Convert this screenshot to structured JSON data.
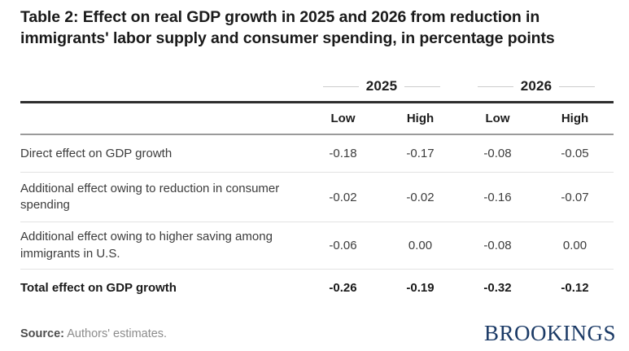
{
  "title": "Table 2: Effect on real GDP growth in 2025 and 2026 from reduction in immigrants' labor supply and consumer spending, in percentage points",
  "table": {
    "year_groups": [
      "2025",
      "2026"
    ],
    "sub_headers": [
      "Low",
      "High",
      "Low",
      "High"
    ],
    "rows": [
      {
        "label": "Direct effect on GDP growth",
        "values": [
          "-0.18",
          "-0.17",
          "-0.08",
          "-0.05"
        ],
        "bold": false
      },
      {
        "label": "Additional effect owing to reduction in consumer spending",
        "values": [
          "-0.02",
          "-0.02",
          "-0.16",
          "-0.07"
        ],
        "bold": false
      },
      {
        "label": "Additional effect owing to higher saving among immigrants in U.S.",
        "values": [
          "-0.06",
          "0.00",
          "-0.08",
          "0.00"
        ],
        "bold": false
      },
      {
        "label": "Total effect on GDP growth",
        "values": [
          "-0.26",
          "-0.19",
          "-0.32",
          "-0.12"
        ],
        "bold": true
      }
    ]
  },
  "footer": {
    "source_label": "Source:",
    "source_text": "Authors' estimates.",
    "brand": "BROOKINGS"
  },
  "colors": {
    "brand_navy": "#1b3a66",
    "title_text": "#1a1a1a",
    "body_text": "#3c3c3c",
    "muted_text": "#8c8c8c",
    "rule_dark": "#2e2e2e",
    "rule_medium": "#9a9a9a",
    "rule_light": "#e3e3e3",
    "year_dash": "#cccccc"
  }
}
